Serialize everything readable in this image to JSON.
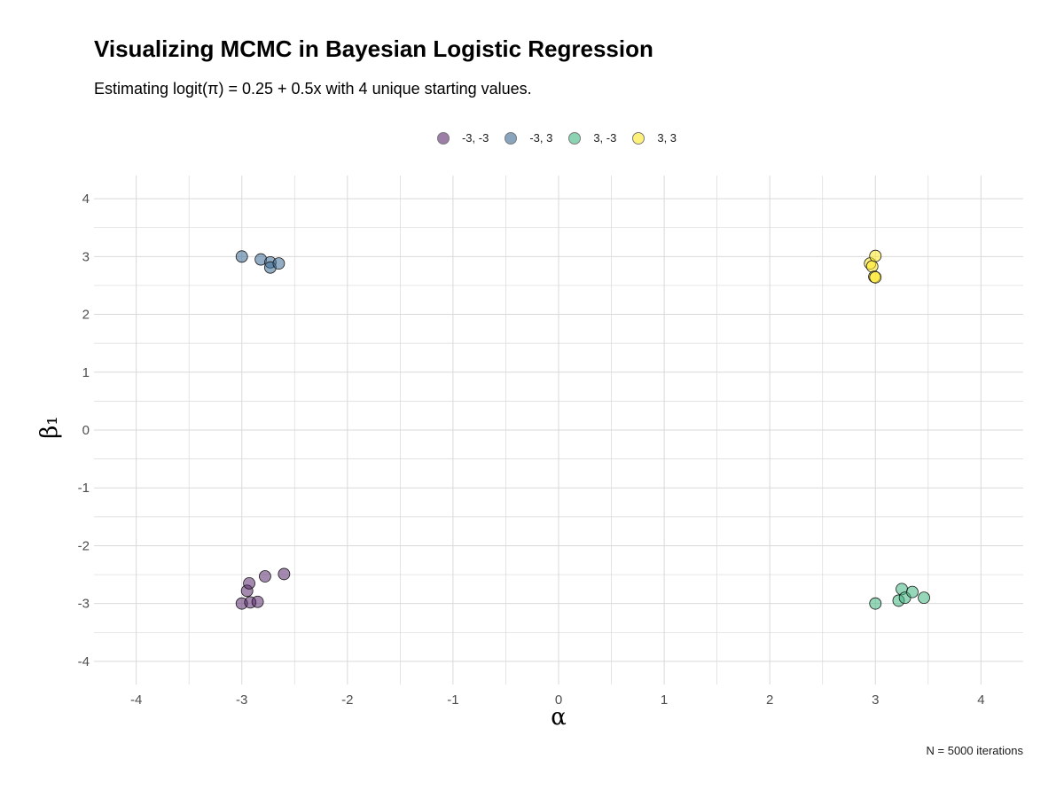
{
  "title": "Visualizing MCMC in Bayesian Logistic Regression",
  "subtitle": "Estimating logit(π) = 0.25 + 0.5x with 4 unique starting values.",
  "caption": "N = 5000 iterations",
  "colors": {
    "grid": "#d9d9d9",
    "axis_text": "#4d4d4d",
    "point_stroke": "#1a1a1a"
  },
  "chart_data": {
    "type": "scatter",
    "xlabel": "α",
    "ylabel": "β₁",
    "xlim": [
      -4.4,
      4.4
    ],
    "ylim": [
      -4.4,
      4.4
    ],
    "xticks": [
      -4,
      -3,
      -2,
      -1,
      0,
      1,
      2,
      3,
      4
    ],
    "yticks": [
      -4,
      -3,
      -2,
      -1,
      0,
      1,
      2,
      3,
      4
    ],
    "xtick_labels": [
      "-4",
      "-3",
      "-2",
      "-1",
      "0",
      "1",
      "2",
      "3",
      "4"
    ],
    "ytick_labels": [
      "-4",
      "-3",
      "-2",
      "-1",
      "0",
      "1",
      "2",
      "3",
      "4"
    ],
    "grid": true,
    "legend_position": "top",
    "series": [
      {
        "name": "-3, -3",
        "color": "#5b2a6e",
        "points": [
          [
            -3.0,
            -3.0
          ],
          [
            -2.95,
            -2.78
          ],
          [
            -2.93,
            -2.65
          ],
          [
            -2.92,
            -2.98
          ],
          [
            -2.85,
            -2.97
          ],
          [
            -2.78,
            -2.53
          ],
          [
            -2.6,
            -2.49
          ]
        ]
      },
      {
        "name": "-3, 3",
        "color": "#3b6a93",
        "points": [
          [
            -3.0,
            3.0
          ],
          [
            -2.82,
            2.95
          ],
          [
            -2.73,
            2.9
          ],
          [
            -2.73,
            2.81
          ],
          [
            -2.65,
            2.88
          ]
        ]
      },
      {
        "name": "3, -3",
        "color": "#3fb67f",
        "points": [
          [
            3.0,
            -3.0
          ],
          [
            3.22,
            -2.95
          ],
          [
            3.25,
            -2.75
          ],
          [
            3.28,
            -2.9
          ],
          [
            3.35,
            -2.8
          ],
          [
            3.46,
            -2.9
          ]
        ]
      },
      {
        "name": "3, 3",
        "color": "#fde725",
        "points": [
          [
            2.95,
            2.88
          ],
          [
            2.97,
            2.83
          ],
          [
            2.99,
            2.65
          ],
          [
            3.0,
            3.01
          ],
          [
            3.0,
            2.64
          ]
        ]
      }
    ]
  }
}
